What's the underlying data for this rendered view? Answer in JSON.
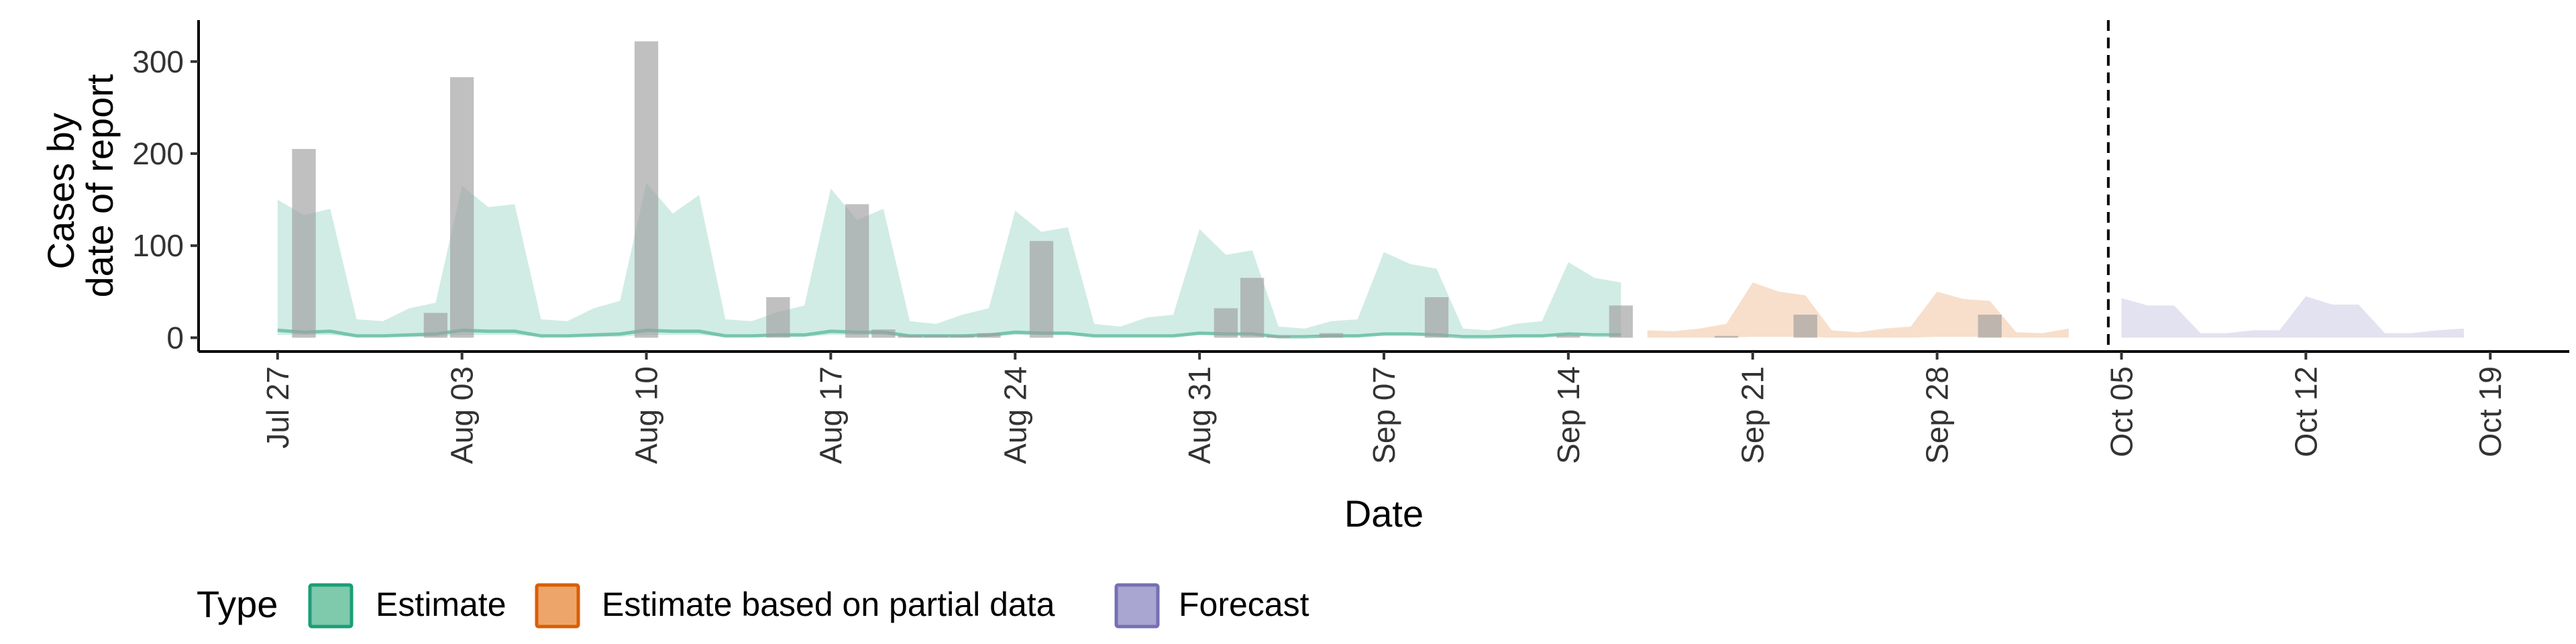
{
  "chart_data": {
    "type": "area",
    "title": "",
    "xlabel": "Date",
    "ylabel_lines": [
      "Cases by",
      "date of report"
    ],
    "date_range": [
      "2020-07-24",
      "2020-10-22"
    ],
    "ylim": [
      -15,
      345
    ],
    "y_ticks": [
      0,
      100,
      200,
      300
    ],
    "x_ticks": [
      {
        "date": "2020-07-27",
        "label": "Jul 27"
      },
      {
        "date": "2020-08-03",
        "label": "Aug 03"
      },
      {
        "date": "2020-08-10",
        "label": "Aug 10"
      },
      {
        "date": "2020-08-17",
        "label": "Aug 17"
      },
      {
        "date": "2020-08-24",
        "label": "Aug 24"
      },
      {
        "date": "2020-08-31",
        "label": "Aug 31"
      },
      {
        "date": "2020-09-07",
        "label": "Sep 07"
      },
      {
        "date": "2020-09-14",
        "label": "Sep 14"
      },
      {
        "date": "2020-09-21",
        "label": "Sep 21"
      },
      {
        "date": "2020-09-28",
        "label": "Sep 28"
      },
      {
        "date": "2020-10-05",
        "label": "Oct 05"
      },
      {
        "date": "2020-10-12",
        "label": "Oct 12"
      },
      {
        "date": "2020-10-19",
        "label": "Oct 19"
      }
    ],
    "forecast_date": "2020-10-04",
    "grid": false,
    "legend": {
      "title": "Type",
      "position": "bottom",
      "entries": [
        {
          "label": "Estimate",
          "fill": "#7fc9ad",
          "stroke": "#1b9e77"
        },
        {
          "label": "Estimate based on partial data",
          "fill": "#eea56a",
          "stroke": "#d95f02"
        },
        {
          "label": "Forecast",
          "fill": "#aaa6d2",
          "stroke": "#7570b3"
        }
      ]
    },
    "bars": {
      "color": "#9e9e9e",
      "opacity": 0.65,
      "points": [
        {
          "date": "2020-07-28",
          "value": 205
        },
        {
          "date": "2020-08-02",
          "value": 27
        },
        {
          "date": "2020-08-03",
          "value": 283
        },
        {
          "date": "2020-08-10",
          "value": 322
        },
        {
          "date": "2020-08-15",
          "value": 44
        },
        {
          "date": "2020-08-18",
          "value": 145
        },
        {
          "date": "2020-08-19",
          "value": 9
        },
        {
          "date": "2020-08-20",
          "value": 3
        },
        {
          "date": "2020-08-21",
          "value": 3
        },
        {
          "date": "2020-08-22",
          "value": 3
        },
        {
          "date": "2020-08-23",
          "value": 5
        },
        {
          "date": "2020-08-25",
          "value": 105
        },
        {
          "date": "2020-09-01",
          "value": 32
        },
        {
          "date": "2020-09-02",
          "value": 65
        },
        {
          "date": "2020-09-03",
          "value": 2
        },
        {
          "date": "2020-09-05",
          "value": 5
        },
        {
          "date": "2020-09-09",
          "value": 44
        },
        {
          "date": "2020-09-14",
          "value": 3
        },
        {
          "date": "2020-09-16",
          "value": 35
        },
        {
          "date": "2020-09-20",
          "value": 2
        },
        {
          "date": "2020-09-23",
          "value": 25
        },
        {
          "date": "2020-09-30",
          "value": 25
        }
      ]
    },
    "series": [
      {
        "name": "Estimate",
        "fill": "#1b9e77",
        "opacity": 0.2,
        "dates": [
          "2020-07-27",
          "2020-07-28",
          "2020-07-29",
          "2020-07-30",
          "2020-07-31",
          "2020-08-01",
          "2020-08-02",
          "2020-08-03",
          "2020-08-04",
          "2020-08-05",
          "2020-08-06",
          "2020-08-07",
          "2020-08-08",
          "2020-08-09",
          "2020-08-10",
          "2020-08-11",
          "2020-08-12",
          "2020-08-13",
          "2020-08-14",
          "2020-08-15",
          "2020-08-16",
          "2020-08-17",
          "2020-08-18",
          "2020-08-19",
          "2020-08-20",
          "2020-08-21",
          "2020-08-22",
          "2020-08-23",
          "2020-08-24",
          "2020-08-25",
          "2020-08-26",
          "2020-08-27",
          "2020-08-28",
          "2020-08-29",
          "2020-08-30",
          "2020-08-31",
          "2020-09-01",
          "2020-09-02",
          "2020-09-03",
          "2020-09-04",
          "2020-09-05",
          "2020-09-06",
          "2020-09-07",
          "2020-09-08",
          "2020-09-09",
          "2020-09-10",
          "2020-09-11",
          "2020-09-12",
          "2020-09-13",
          "2020-09-14",
          "2020-09-15",
          "2020-09-16"
        ],
        "upper": [
          150,
          133,
          140,
          20,
          18,
          32,
          38,
          165,
          142,
          145,
          20,
          18,
          32,
          40,
          168,
          135,
          155,
          20,
          18,
          28,
          35,
          162,
          128,
          140,
          18,
          15,
          25,
          32,
          138,
          115,
          120,
          15,
          12,
          22,
          25,
          118,
          90,
          95,
          12,
          10,
          18,
          20,
          93,
          80,
          75,
          10,
          8,
          15,
          18,
          82,
          65,
          60
        ],
        "lower": [
          3,
          3,
          3,
          1,
          1,
          1,
          1,
          3,
          3,
          3,
          1,
          1,
          1,
          1,
          3,
          3,
          3,
          1,
          1,
          1,
          1,
          3,
          3,
          3,
          1,
          1,
          1,
          1,
          3,
          3,
          3,
          1,
          1,
          1,
          1,
          3,
          3,
          3,
          1,
          1,
          1,
          1,
          3,
          3,
          3,
          1,
          1,
          1,
          1,
          3,
          3,
          3
        ],
        "median": [
          8,
          6,
          7,
          2,
          2,
          3,
          4,
          8,
          7,
          7,
          2,
          2,
          3,
          4,
          8,
          7,
          7,
          2,
          2,
          3,
          3,
          7,
          6,
          6,
          2,
          2,
          2,
          3,
          6,
          5,
          5,
          2,
          2,
          2,
          2,
          5,
          4,
          4,
          1,
          1,
          2,
          2,
          4,
          4,
          3,
          1,
          1,
          2,
          2,
          4,
          3,
          3
        ]
      },
      {
        "name": "Estimate based on partial data",
        "fill": "#d95f02",
        "opacity": 0.2,
        "dates": [
          "2020-09-17",
          "2020-09-18",
          "2020-09-19",
          "2020-09-20",
          "2020-09-21",
          "2020-09-22",
          "2020-09-23",
          "2020-09-24",
          "2020-09-25",
          "2020-09-26",
          "2020-09-27",
          "2020-09-28",
          "2020-09-29",
          "2020-09-30",
          "2020-10-01",
          "2020-10-02",
          "2020-10-03"
        ],
        "upper": [
          8,
          7,
          10,
          15,
          60,
          50,
          46,
          8,
          6,
          10,
          12,
          50,
          42,
          40,
          6,
          5,
          10
        ],
        "lower": [
          0,
          0,
          0,
          0,
          1,
          1,
          1,
          0,
          0,
          0,
          0,
          1,
          1,
          1,
          0,
          0,
          0
        ]
      },
      {
        "name": "Forecast",
        "fill": "#7570b3",
        "opacity": 0.2,
        "dates": [
          "2020-10-05",
          "2020-10-06",
          "2020-10-07",
          "2020-10-08",
          "2020-10-09",
          "2020-10-10",
          "2020-10-11",
          "2020-10-12",
          "2020-10-13",
          "2020-10-14",
          "2020-10-15",
          "2020-10-16",
          "2020-10-17",
          "2020-10-18"
        ],
        "upper": [
          43,
          35,
          35,
          5,
          5,
          8,
          8,
          45,
          36,
          36,
          5,
          5,
          8,
          10
        ],
        "lower": [
          0,
          0,
          0,
          0,
          0,
          0,
          0,
          0,
          0,
          0,
          0,
          0,
          0,
          0
        ]
      }
    ]
  }
}
